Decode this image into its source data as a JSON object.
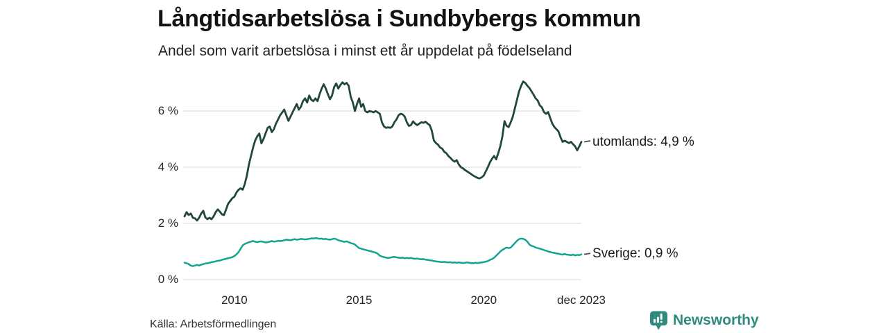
{
  "chart_data": {
    "type": "line",
    "title": "Långtidsarbetslösa i Sundbybergs kommun",
    "subtitle": "Andel som varit arbetslösa i minst ett år uppdelat på födelseland",
    "source": "Källa: Arbetsförmedlingen",
    "frequency": "monthly",
    "x_start": 2008.0,
    "x_end": 2023.9167,
    "xlabel": "",
    "ylabel": "",
    "ylim": [
      0,
      7.3
    ],
    "grid": "horizontal",
    "legend_position": "end-of-line-labels",
    "yticks": [
      {
        "label": "0 %",
        "value": 0
      },
      {
        "label": "2 %",
        "value": 2
      },
      {
        "label": "4 %",
        "value": 4
      },
      {
        "label": "6 %",
        "value": 6
      }
    ],
    "xticks": [
      {
        "label": "2010",
        "value": 2010
      },
      {
        "label": "2015",
        "value": 2015
      },
      {
        "label": "2020",
        "value": 2020
      },
      {
        "label": "dec 2023",
        "value": 2023.9167
      }
    ],
    "series": [
      {
        "name": "utomlands",
        "end_label": "utomlands: 4,9 %",
        "last_value_label": "4,9 %",
        "color": "#21483a",
        "values": [
          2.25,
          2.4,
          2.3,
          2.35,
          2.2,
          2.18,
          2.1,
          2.2,
          2.35,
          2.45,
          2.22,
          2.15,
          2.2,
          2.15,
          2.25,
          2.4,
          2.5,
          2.42,
          2.32,
          2.3,
          2.5,
          2.7,
          2.8,
          2.9,
          2.95,
          3.1,
          3.2,
          3.25,
          3.2,
          3.4,
          3.7,
          4.1,
          4.4,
          4.7,
          4.95,
          5.1,
          5.2,
          4.85,
          5.0,
          5.2,
          5.4,
          5.45,
          5.25,
          5.35,
          5.55,
          5.7,
          5.85,
          5.95,
          6.05,
          5.85,
          5.65,
          5.8,
          5.95,
          6.1,
          6.25,
          6.05,
          6.15,
          6.35,
          6.45,
          6.3,
          6.55,
          6.4,
          6.35,
          6.45,
          6.35,
          6.6,
          6.8,
          6.95,
          6.8,
          6.6,
          6.42,
          6.55,
          6.85,
          6.98,
          6.8,
          6.92,
          7.02,
          6.95,
          7.0,
          6.9,
          6.5,
          6.3,
          6.0,
          6.25,
          6.45,
          6.15,
          6.25,
          6.0,
          5.95,
          6.0,
          5.98,
          5.95,
          6.0,
          5.95,
          5.9,
          5.6,
          5.45,
          5.4,
          5.42,
          5.4,
          5.45,
          5.6,
          5.7,
          5.85,
          5.9,
          5.88,
          5.8,
          5.6,
          5.47,
          5.5,
          5.63,
          5.55,
          5.5,
          5.55,
          5.6,
          5.58,
          5.62,
          5.55,
          5.5,
          5.3,
          4.95,
          4.86,
          4.8,
          4.7,
          4.66,
          4.55,
          4.5,
          4.4,
          4.33,
          4.25,
          4.2,
          4.25,
          4.1,
          4.0,
          3.96,
          3.9,
          3.85,
          3.8,
          3.75,
          3.7,
          3.66,
          3.62,
          3.6,
          3.64,
          3.7,
          3.85,
          4.0,
          4.17,
          4.3,
          4.4,
          4.28,
          4.5,
          4.75,
          5.1,
          5.64,
          5.47,
          5.43,
          5.6,
          5.8,
          6.1,
          6.4,
          6.7,
          6.9,
          7.05,
          7.0,
          6.9,
          6.82,
          6.7,
          6.58,
          6.45,
          6.37,
          6.2,
          6.13,
          5.96,
          5.9,
          5.96,
          5.75,
          5.55,
          5.43,
          5.35,
          5.27,
          5.06,
          4.9,
          4.94,
          4.9,
          4.86,
          4.9,
          4.82,
          4.74,
          4.6,
          4.74,
          4.9
        ]
      },
      {
        "name": "Sverige",
        "end_label": "Sverige: 0,9 %",
        "last_value_label": "0,9 %",
        "color": "#14a390",
        "values": [
          0.6,
          0.58,
          0.55,
          0.5,
          0.48,
          0.5,
          0.52,
          0.5,
          0.53,
          0.55,
          0.57,
          0.58,
          0.6,
          0.62,
          0.63,
          0.65,
          0.67,
          0.68,
          0.7,
          0.72,
          0.74,
          0.76,
          0.78,
          0.8,
          0.84,
          0.9,
          0.98,
          1.1,
          1.22,
          1.27,
          1.3,
          1.33,
          1.35,
          1.37,
          1.35,
          1.33,
          1.35,
          1.36,
          1.34,
          1.32,
          1.33,
          1.35,
          1.37,
          1.35,
          1.36,
          1.38,
          1.37,
          1.38,
          1.4,
          1.42,
          1.41,
          1.4,
          1.42,
          1.44,
          1.42,
          1.43,
          1.45,
          1.44,
          1.43,
          1.44,
          1.45,
          1.47,
          1.46,
          1.48,
          1.47,
          1.45,
          1.46,
          1.44,
          1.45,
          1.43,
          1.42,
          1.44,
          1.46,
          1.44,
          1.4,
          1.38,
          1.36,
          1.34,
          1.36,
          1.33,
          1.3,
          1.28,
          1.25,
          1.18,
          1.12,
          1.1,
          1.08,
          1.06,
          1.04,
          1.02,
          1.0,
          0.98,
          0.96,
          0.92,
          0.85,
          0.82,
          0.8,
          0.78,
          0.77,
          0.78,
          0.8,
          0.81,
          0.79,
          0.78,
          0.77,
          0.78,
          0.76,
          0.77,
          0.76,
          0.77,
          0.75,
          0.74,
          0.75,
          0.73,
          0.72,
          0.73,
          0.71,
          0.7,
          0.69,
          0.68,
          0.66,
          0.65,
          0.64,
          0.63,
          0.62,
          0.63,
          0.62,
          0.61,
          0.62,
          0.6,
          0.61,
          0.6,
          0.61,
          0.6,
          0.59,
          0.6,
          0.61,
          0.6,
          0.59,
          0.58,
          0.6,
          0.59,
          0.6,
          0.61,
          0.62,
          0.64,
          0.66,
          0.7,
          0.73,
          0.78,
          0.85,
          0.92,
          1.0,
          1.06,
          1.1,
          1.14,
          1.12,
          1.14,
          1.22,
          1.3,
          1.38,
          1.44,
          1.46,
          1.45,
          1.42,
          1.35,
          1.25,
          1.2,
          1.18,
          1.14,
          1.12,
          1.1,
          1.08,
          1.05,
          1.03,
          1.0,
          0.98,
          0.96,
          0.95,
          0.93,
          0.92,
          0.9,
          0.89,
          0.91,
          0.89,
          0.88,
          0.87,
          0.89,
          0.86,
          0.88,
          0.87,
          0.9
        ]
      }
    ]
  },
  "footer": {
    "brand": "Newsworthy"
  },
  "colors": {
    "grid": "#d8d8d8",
    "connector": "#4d4d4d",
    "brand": "#2f8b7d"
  }
}
